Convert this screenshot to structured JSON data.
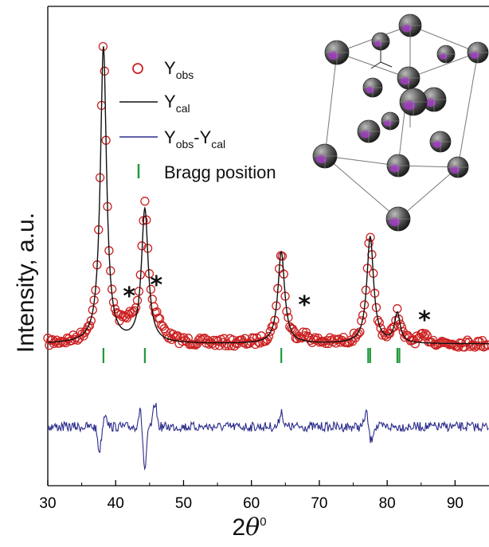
{
  "chart_data": {
    "type": "line",
    "title": "",
    "xlabel": "2θ",
    "xlabel_main": "2",
    "xlabel_theta": "θ",
    "xlabel_sup": "0",
    "ylabel": "Intensity, a.u.",
    "xlim": [
      30,
      95
    ],
    "x_ticks": [
      30,
      40,
      50,
      60,
      70,
      80,
      90
    ],
    "y_ticks_shown": false,
    "grid": false,
    "legend_placement": "top-center",
    "legend": [
      {
        "main": "Y",
        "sub": "obs",
        "style": "open-circle",
        "color": "#cc2020"
      },
      {
        "main": "Y",
        "sub": "cal",
        "style": "line",
        "color": "#111111"
      },
      {
        "main": "Y",
        "sub": "obs",
        "mid": "-Y",
        "sub2": "cal",
        "style": "line",
        "color": "#2b2b8c"
      },
      {
        "text": "Bragg position",
        "style": "tick",
        "color": "#1f9a3a"
      }
    ],
    "peaks": [
      {
        "pos": 38.2,
        "height": 1.0,
        "width": 0.55
      },
      {
        "pos": 44.3,
        "height": 0.45,
        "width": 0.6
      },
      {
        "pos": 64.4,
        "height": 0.31,
        "width": 0.6
      },
      {
        "pos": 77.5,
        "height": 0.36,
        "width": 0.6
      },
      {
        "pos": 81.5,
        "height": 0.1,
        "width": 0.5
      }
    ],
    "baseline": 0.03,
    "bragg_positions": [
      38.2,
      44.3,
      64.4,
      77.2,
      77.5,
      81.5,
      81.8
    ],
    "impurity_markers": [
      {
        "x": 42.0,
        "label": "*"
      },
      {
        "x": 46.0,
        "label": "*"
      },
      {
        "x": 67.8,
        "label": "*"
      },
      {
        "x": 85.5,
        "label": "*"
      }
    ],
    "difference_features": [
      {
        "x": 37.6,
        "amp": -0.3
      },
      {
        "x": 38.5,
        "amp": 0.18
      },
      {
        "x": 43.6,
        "amp": 0.2
      },
      {
        "x": 44.3,
        "amp": -0.55
      },
      {
        "x": 45.8,
        "amp": 0.3
      },
      {
        "x": 64.4,
        "amp": 0.2
      },
      {
        "x": 76.9,
        "amp": 0.18
      },
      {
        "x": 77.6,
        "amp": -0.18
      }
    ],
    "colors": {
      "observed": "#cc2020",
      "calculated": "#111111",
      "difference": "#2b2b8c",
      "bragg": "#1f9a3a"
    }
  },
  "inset": {
    "type": "crystal-structure",
    "atom_color_primary": "#555555",
    "atom_color_secondary": "#a03cc0"
  }
}
